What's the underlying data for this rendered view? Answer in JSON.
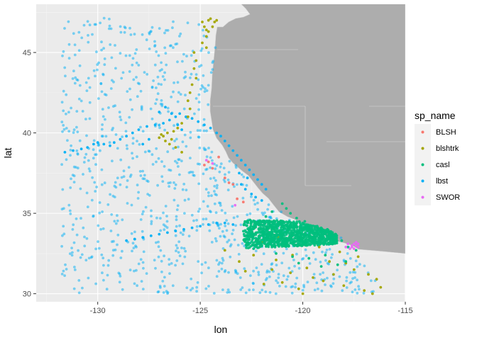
{
  "chart_data": {
    "type": "scatter",
    "xlabel": "lon",
    "ylabel": "lat",
    "xlim": [
      -133,
      -115
    ],
    "ylim": [
      29.5,
      48.0
    ],
    "x_ticks": [
      -130,
      -125,
      -120,
      -115
    ],
    "y_ticks": [
      30,
      35,
      40,
      45
    ],
    "x_tick_labels": [
      "-130",
      "-125",
      "-120",
      "-115"
    ],
    "y_tick_labels": [
      "30",
      "35",
      "40",
      "45"
    ],
    "grid": true,
    "legend_title": "sp_name",
    "legend_position": "right",
    "panel_background": "#ebebeb",
    "land_color": "#adadad",
    "series": [
      {
        "name": "BLSH",
        "color": "#F8766D",
        "points": [
          [
            -124.8,
            38.0
          ],
          [
            -124.6,
            38.2
          ],
          [
            -124.1,
            38.5
          ],
          [
            -123.8,
            37.2
          ],
          [
            -123.6,
            36.9
          ],
          [
            -123.4,
            36.8
          ],
          [
            -123.2,
            35.9
          ],
          [
            -124.4,
            37.8
          ],
          [
            -122.9,
            35.7
          ]
        ]
      },
      {
        "name": "blshtrk",
        "color": "#A3A500",
        "points": [
          [
            -124.6,
            47.0
          ],
          [
            -124.5,
            47.1
          ],
          [
            -124.3,
            46.9
          ],
          [
            -124.2,
            47.0
          ],
          [
            -124.4,
            46.6
          ],
          [
            -124.6,
            46.3
          ],
          [
            -124.9,
            46.9
          ],
          [
            -124.8,
            46.6
          ],
          [
            -124.7,
            46.4
          ],
          [
            -124.7,
            46.0
          ],
          [
            -124.9,
            45.6
          ],
          [
            -124.7,
            45.3
          ],
          [
            -125.3,
            45.0
          ],
          [
            -125.2,
            44.5
          ],
          [
            -125.3,
            44.0
          ],
          [
            -125.2,
            43.4
          ],
          [
            -125.4,
            43.0
          ],
          [
            -125.5,
            42.5
          ],
          [
            -125.6,
            42.0
          ],
          [
            -125.5,
            41.5
          ],
          [
            -125.6,
            41.0
          ],
          [
            -125.9,
            40.6
          ],
          [
            -126.1,
            40.3
          ],
          [
            -126.3,
            40.1
          ],
          [
            -126.6,
            40.0
          ],
          [
            -126.8,
            39.8
          ],
          [
            -127.0,
            39.7
          ],
          [
            -126.7,
            39.5
          ],
          [
            -126.5,
            39.3
          ],
          [
            -126.2,
            39.1
          ],
          [
            -125.9,
            38.8
          ],
          [
            -126.4,
            39.6
          ],
          [
            -126.9,
            39.9
          ],
          [
            -119.5,
            31.0
          ],
          [
            -119.0,
            30.8
          ],
          [
            -118.5,
            31.2
          ],
          [
            -118.0,
            30.5
          ],
          [
            -117.5,
            31.5
          ],
          [
            -117.0,
            30.2
          ],
          [
            -116.6,
            30.0
          ],
          [
            -116.2,
            30.4
          ],
          [
            -119.8,
            31.6
          ],
          [
            -120.2,
            30.3
          ],
          [
            -120.6,
            31.3
          ],
          [
            -121.0,
            30.7
          ],
          [
            -121.5,
            31.5
          ],
          [
            -121.9,
            30.6
          ],
          [
            -118.7,
            32.0
          ],
          [
            -117.9,
            31.9
          ],
          [
            -117.3,
            32.3
          ],
          [
            -118.2,
            32.6
          ],
          [
            -116.8,
            31.2
          ],
          [
            -116.4,
            30.9
          ],
          [
            -120.0,
            30.0
          ],
          [
            -121.3,
            32.1
          ],
          [
            -122.4,
            32.4
          ],
          [
            -123.1,
            32.0
          ],
          [
            -122.0,
            33.2
          ],
          [
            -121.2,
            33.5
          ],
          [
            -122.8,
            31.4
          ],
          [
            -123.8,
            32.7
          ],
          [
            -119.2,
            32.9
          ],
          [
            -120.5,
            32.4
          ]
        ]
      },
      {
        "name": "casl",
        "color": "#00BF7D",
        "dense_region": {
          "x_range": [
            -122.9,
            -118.3
          ],
          "y_range": [
            32.5,
            34.6
          ],
          "count": 1200
        },
        "points": [
          [
            -120.8,
            35.3
          ],
          [
            -121.0,
            35.6
          ],
          [
            -120.6,
            35.0
          ],
          [
            -120.3,
            34.7
          ],
          [
            -119.9,
            34.5
          ],
          [
            -119.3,
            34.2
          ],
          [
            -118.8,
            34.0
          ],
          [
            -118.4,
            33.7
          ],
          [
            -118.1,
            33.3
          ],
          [
            -117.8,
            32.9
          ],
          [
            -117.4,
            32.7
          ],
          [
            -121.6,
            33.2
          ],
          [
            -122.1,
            33.5
          ],
          [
            -120.5,
            32.3
          ],
          [
            -119.7,
            32.2
          ],
          [
            -118.9,
            32.4
          ],
          [
            -121.3,
            32.5
          ],
          [
            -122.4,
            32.8
          ],
          [
            -117.9,
            32.0
          ],
          [
            -118.3,
            31.8
          ],
          [
            -119.1,
            31.7
          ],
          [
            -120.2,
            31.9
          ],
          [
            -121.5,
            35.1
          ],
          [
            -121.8,
            34.8
          ]
        ]
      },
      {
        "name": "lbst",
        "color": "#00B0F6",
        "scatter_region": {
          "x_range": [
            -131.8,
            -116.4
          ],
          "y_range": [
            30.0,
            47.2
          ],
          "count": 950
        },
        "points": [
          [
            -131.6,
            38.8
          ],
          [
            -131.2,
            38.9
          ],
          [
            -130.8,
            39.0
          ],
          [
            -130.5,
            39.1
          ],
          [
            -130.2,
            39.3
          ],
          [
            -130.0,
            39.4
          ],
          [
            -129.7,
            39.3
          ],
          [
            -129.4,
            39.2
          ],
          [
            -129.2,
            39.4
          ],
          [
            -128.9,
            39.6
          ],
          [
            -128.6,
            39.8
          ],
          [
            -128.3,
            40.0
          ],
          [
            -128.0,
            40.2
          ],
          [
            -127.6,
            40.4
          ],
          [
            -127.2,
            40.5
          ],
          [
            -126.8,
            40.6
          ],
          [
            -126.5,
            40.8
          ],
          [
            -126.2,
            41.0
          ],
          [
            -126.0,
            41.2
          ],
          [
            -125.7,
            41.0
          ],
          [
            -125.4,
            40.9
          ],
          [
            -125.1,
            40.7
          ],
          [
            -124.8,
            40.5
          ],
          [
            -124.5,
            40.3
          ],
          [
            -124.2,
            40.0
          ],
          [
            -124.0,
            39.8
          ],
          [
            -123.8,
            39.5
          ],
          [
            -123.6,
            39.2
          ],
          [
            -123.4,
            38.9
          ],
          [
            -123.2,
            38.6
          ],
          [
            -123.0,
            38.3
          ],
          [
            -122.8,
            38.0
          ],
          [
            -122.6,
            37.7
          ],
          [
            -122.4,
            37.4
          ],
          [
            -122.2,
            37.1
          ],
          [
            -122.0,
            36.8
          ],
          [
            -121.8,
            36.5
          ],
          [
            -122.5,
            36.2
          ],
          [
            -122.8,
            36.5
          ],
          [
            -123.0,
            36.8
          ],
          [
            -122.7,
            37.2
          ],
          [
            -123.1,
            37.5
          ],
          [
            -122.3,
            36.0
          ],
          [
            -122.0,
            35.8
          ],
          [
            -128.6,
            33.3
          ],
          [
            -128.2,
            33.4
          ],
          [
            -127.8,
            33.5
          ],
          [
            -127.4,
            33.6
          ],
          [
            -127.0,
            33.7
          ],
          [
            -126.6,
            33.8
          ],
          [
            -126.2,
            33.9
          ],
          [
            -125.8,
            34.0
          ],
          [
            -125.4,
            34.1
          ],
          [
            -125.0,
            34.2
          ],
          [
            -124.6,
            34.3
          ],
          [
            -124.2,
            34.4
          ],
          [
            -123.8,
            34.4
          ],
          [
            -123.4,
            34.3
          ],
          [
            -127.0,
            41.3
          ],
          [
            -126.7,
            41.6
          ],
          [
            -126.4,
            41.2
          ],
          [
            -126.1,
            40.5
          ],
          [
            -125.9,
            40.2
          ],
          [
            -127.5,
            39.6
          ],
          [
            -127.8,
            39.3
          ]
        ]
      },
      {
        "name": "SWOR",
        "color": "#E76BF3",
        "points": [
          [
            -117.6,
            33.0
          ],
          [
            -117.5,
            33.1
          ],
          [
            -117.4,
            33.0
          ],
          [
            -117.3,
            32.9
          ],
          [
            -117.7,
            32.8
          ],
          [
            -117.6,
            32.9
          ],
          [
            -117.5,
            32.8
          ],
          [
            -117.4,
            33.2
          ],
          [
            -117.8,
            33.1
          ],
          [
            -117.3,
            33.1
          ],
          [
            -117.9,
            32.9
          ],
          [
            -124.7,
            38.3
          ],
          [
            -124.4,
            38.1
          ],
          [
            -123.3,
            35.5
          ]
        ]
      }
    ]
  }
}
